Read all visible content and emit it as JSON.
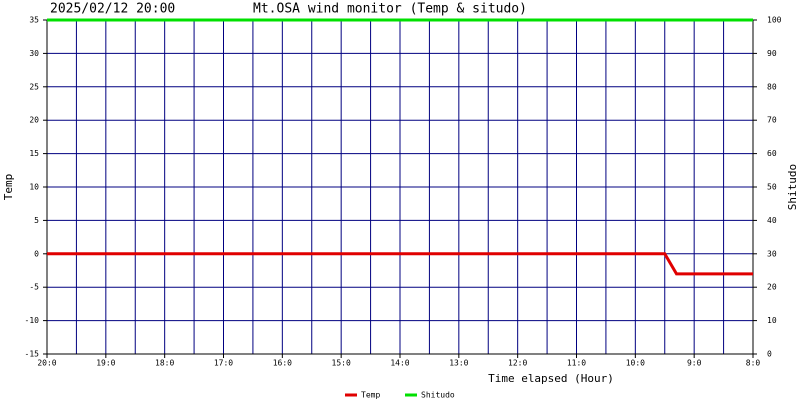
{
  "chart_data": {
    "type": "line",
    "date_label": "2025/02/12 20:00",
    "title": "Mt.OSA wind monitor (Temp & situdo)",
    "xlabel": "Time elapsed (Hour)",
    "ylabel": "Temp",
    "y2label": "Shitudo",
    "xlim": [
      0,
      12
    ],
    "xticks": [
      {
        "value": 0,
        "label": "20:0"
      },
      {
        "value": 1,
        "label": "19:0"
      },
      {
        "value": 2,
        "label": "18:0"
      },
      {
        "value": 3,
        "label": "17:0"
      },
      {
        "value": 4,
        "label": "16:0"
      },
      {
        "value": 5,
        "label": "15:0"
      },
      {
        "value": 6,
        "label": "14:0"
      },
      {
        "value": 7,
        "label": "13:0"
      },
      {
        "value": 8,
        "label": "12:0"
      },
      {
        "value": 9,
        "label": "11:0"
      },
      {
        "value": 10,
        "label": "10:0"
      },
      {
        "value": 11,
        "label": "9:0"
      },
      {
        "value": 12,
        "label": "8:0"
      }
    ],
    "ylim": [
      -15,
      35
    ],
    "yticks": [
      -15,
      -10,
      -5,
      0,
      5,
      10,
      15,
      20,
      25,
      30,
      35
    ],
    "y2lim": [
      0,
      100
    ],
    "y2ticks": [
      0,
      10,
      20,
      30,
      40,
      50,
      60,
      70,
      80,
      90,
      100
    ],
    "grid": true,
    "series": [
      {
        "name": "Temp",
        "color": "#e00000",
        "x": [
          0,
          10.5,
          10.7,
          12
        ],
        "values": [
          0,
          0,
          -3,
          -3
        ]
      },
      {
        "name": "Shitudo",
        "color": "#00e000",
        "axis": "y2",
        "x": [
          0,
          12
        ],
        "values": [
          100,
          100
        ]
      }
    ]
  }
}
